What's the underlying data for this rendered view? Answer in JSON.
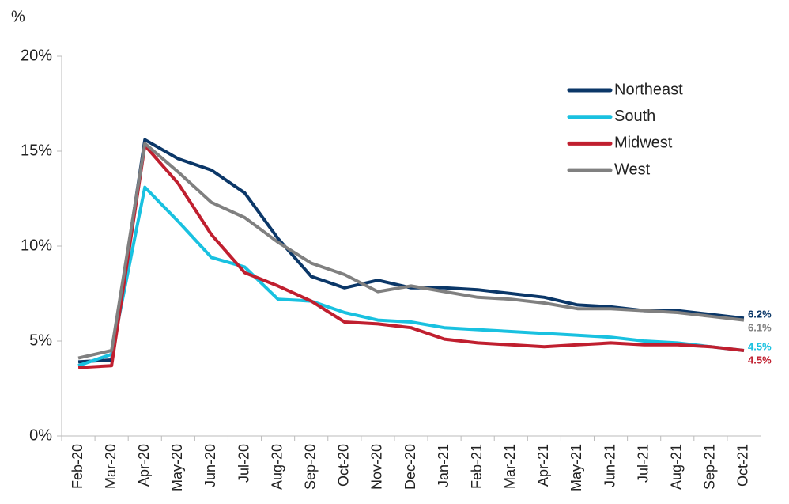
{
  "chart_data": {
    "type": "line",
    "y_axis_label": "%",
    "categories": [
      "Feb-20",
      "Mar-20",
      "Apr-20",
      "May-20",
      "Jun-20",
      "Jul-20",
      "Aug-20",
      "Sep-20",
      "Oct-20",
      "Nov-20",
      "Dec-20",
      "Jan-21",
      "Feb-21",
      "Mar-21",
      "Apr-21",
      "May-21",
      "Jun-21",
      "Jul-21",
      "Aug-21",
      "Sep-21",
      "Oct-21"
    ],
    "series": [
      {
        "name": "Northeast",
        "color": "#0b3768",
        "values": [
          3.9,
          4.0,
          15.6,
          14.6,
          14.0,
          12.8,
          10.4,
          8.4,
          7.8,
          8.2,
          7.8,
          7.8,
          7.7,
          7.5,
          7.3,
          6.9,
          6.8,
          6.6,
          6.6,
          6.4,
          6.2
        ],
        "value_labels": [
          null,
          null,
          null,
          null,
          null,
          null,
          null,
          null,
          null,
          null,
          null,
          null,
          null,
          null,
          null,
          null,
          null,
          null,
          null,
          null,
          "6.2%"
        ]
      },
      {
        "name": "South",
        "color": "#19c1e0",
        "values": [
          3.7,
          4.3,
          13.1,
          11.3,
          9.4,
          8.9,
          7.2,
          7.1,
          6.5,
          6.1,
          6.0,
          5.7,
          5.6,
          5.5,
          5.4,
          5.3,
          5.2,
          5.0,
          4.9,
          4.7,
          4.5
        ],
        "value_labels": [
          null,
          null,
          null,
          null,
          null,
          null,
          null,
          null,
          null,
          null,
          null,
          null,
          null,
          null,
          null,
          null,
          null,
          null,
          null,
          null,
          "4.5%"
        ]
      },
      {
        "name": "Midwest",
        "color": "#c01f2f",
        "values": [
          3.6,
          3.7,
          15.3,
          13.3,
          10.6,
          8.6,
          7.9,
          7.1,
          6.0,
          5.9,
          5.7,
          5.1,
          4.9,
          4.8,
          4.7,
          4.8,
          4.9,
          4.8,
          4.8,
          4.7,
          4.5
        ],
        "value_labels": [
          null,
          null,
          null,
          null,
          null,
          null,
          null,
          null,
          null,
          null,
          null,
          null,
          null,
          null,
          null,
          null,
          null,
          null,
          null,
          null,
          "4.5%"
        ]
      },
      {
        "name": "West",
        "color": "#808080",
        "values": [
          4.1,
          4.5,
          15.4,
          13.9,
          12.3,
          11.5,
          10.2,
          9.1,
          8.5,
          7.6,
          7.9,
          7.6,
          7.3,
          7.2,
          7.0,
          6.7,
          6.7,
          6.6,
          6.5,
          6.3,
          6.1
        ],
        "value_labels": [
          null,
          null,
          null,
          null,
          null,
          null,
          null,
          null,
          null,
          null,
          null,
          null,
          null,
          null,
          null,
          null,
          null,
          null,
          null,
          null,
          "6.1%"
        ]
      }
    ],
    "ylim": [
      0,
      20
    ],
    "yticks": [
      {
        "value": 0,
        "label": "0%"
      },
      {
        "value": 5,
        "label": "5%"
      },
      {
        "value": 10,
        "label": "10%"
      },
      {
        "value": 15,
        "label": "15%"
      },
      {
        "value": 20,
        "label": "20%"
      }
    ],
    "legend": "upper right"
  }
}
